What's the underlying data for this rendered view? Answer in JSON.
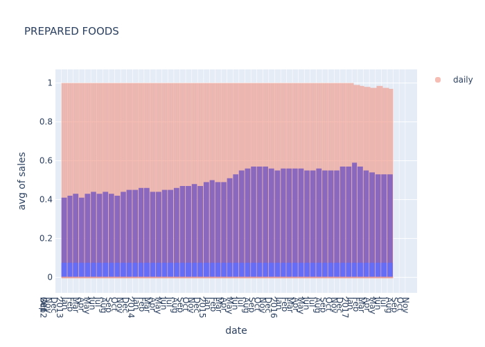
{
  "chart_data": {
    "type": "bar",
    "title": "PREPARED FOODS",
    "xlabel": "date",
    "ylabel": "avg of sales",
    "ylim": [
      -0.08,
      1.07
    ],
    "yticks": [
      0,
      0.2,
      0.4,
      0.6,
      0.8,
      1
    ],
    "ytick_labels": [
      "0",
      "0.2",
      "0.4",
      "0.6",
      "0.8",
      "1"
    ],
    "xlim": [
      "2012-12-01",
      "2018-01-01"
    ],
    "x_tick_labels": [
      "2012",
      "Sep",
      "Oct",
      "Nov",
      "Dec",
      "2013",
      "Jan",
      "Feb",
      "Mar",
      "Apr",
      "May",
      "Jun",
      "Jul",
      "Aug",
      "Sep",
      "Oct",
      "Nov",
      "Dec",
      "2014",
      "Jan",
      "Feb",
      "Mar",
      "Apr",
      "May",
      "Jun",
      "Jul",
      "Aug",
      "Sep",
      "Oct",
      "Nov",
      "Dec",
      "2015",
      "Jan",
      "Feb",
      "Mar",
      "Apr",
      "May",
      "Jun",
      "Jul",
      "Aug",
      "Sep",
      "Oct",
      "Nov",
      "Dec",
      "2016",
      "Jan",
      "Feb",
      "Mar",
      "Apr",
      "May",
      "Jun",
      "Jul",
      "Aug",
      "Sep",
      "Oct",
      "Nov",
      "Dec",
      "2017",
      "Jan",
      "Feb",
      "Mar",
      "Apr",
      "May",
      "Jun",
      "Jul",
      "Aug",
      "Sep",
      "Oct",
      "Nov"
    ],
    "grid": true,
    "legend_position": "top-right",
    "series": [
      {
        "name": "daily",
        "color": "#ef9a8a",
        "kind": "bar",
        "x_start": "2013-01-01",
        "x_end": "2017-08-31",
        "base": 0,
        "max": 1,
        "tail_values": [
          0.99,
          0.985,
          0.98,
          0.975,
          0.985,
          0.975,
          0.97
        ]
      },
      {
        "name": "",
        "color": "#7f5fbf",
        "kind": "bar",
        "categories": [
          "2013-01",
          "2013-02",
          "2013-03",
          "2013-04",
          "2013-05",
          "2013-06",
          "2013-07",
          "2013-08",
          "2013-09",
          "2013-10",
          "2013-11",
          "2013-12",
          "2014-01",
          "2014-02",
          "2014-03",
          "2014-04",
          "2014-05",
          "2014-06",
          "2014-07",
          "2014-08",
          "2014-09",
          "2014-10",
          "2014-11",
          "2014-12",
          "2015-01",
          "2015-02",
          "2015-03",
          "2015-04",
          "2015-05",
          "2015-06",
          "2015-07",
          "2015-08",
          "2015-09",
          "2015-10",
          "2015-11",
          "2015-12",
          "2016-01",
          "2016-02",
          "2016-03",
          "2016-04",
          "2016-05",
          "2016-06",
          "2016-07",
          "2016-08",
          "2016-09",
          "2016-10",
          "2016-11",
          "2016-12",
          "2017-01",
          "2017-02",
          "2017-03",
          "2017-04",
          "2017-05",
          "2017-06",
          "2017-07",
          "2017-08"
        ],
        "values": [
          0.41,
          0.42,
          0.43,
          0.41,
          0.43,
          0.44,
          0.43,
          0.44,
          0.43,
          0.42,
          0.44,
          0.45,
          0.45,
          0.46,
          0.46,
          0.44,
          0.44,
          0.45,
          0.45,
          0.46,
          0.47,
          0.47,
          0.48,
          0.47,
          0.49,
          0.5,
          0.49,
          0.49,
          0.51,
          0.53,
          0.55,
          0.56,
          0.57,
          0.57,
          0.57,
          0.56,
          0.55,
          0.56,
          0.56,
          0.56,
          0.56,
          0.55,
          0.55,
          0.56,
          0.55,
          0.55,
          0.55,
          0.57,
          0.57,
          0.59,
          0.57,
          0.55,
          0.54,
          0.53,
          0.53,
          0.53
        ]
      },
      {
        "name": "",
        "color": "#636efa",
        "kind": "bar",
        "value": 0.075
      }
    ]
  }
}
